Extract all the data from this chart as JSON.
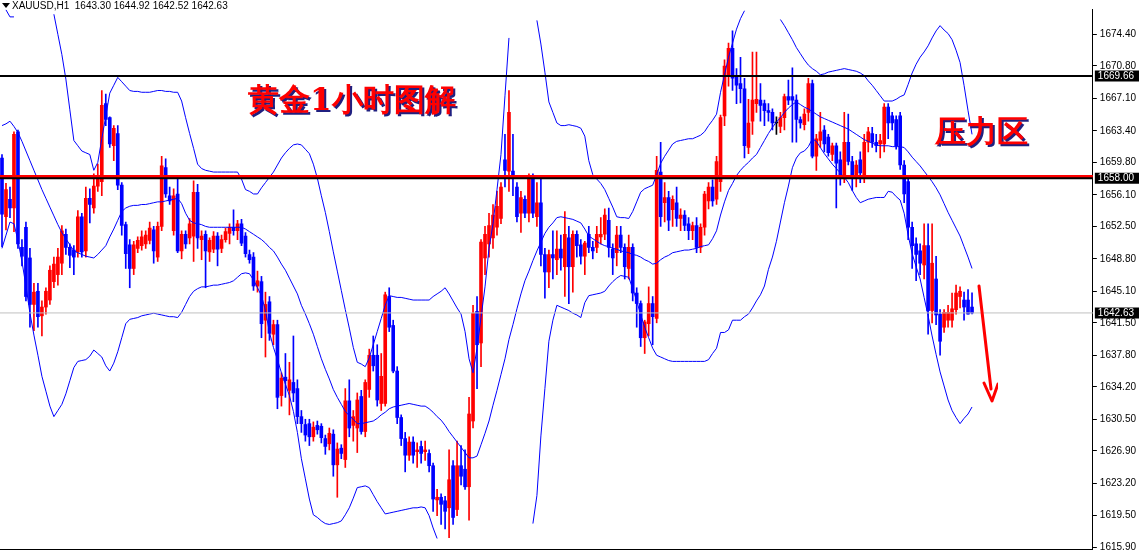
{
  "chart_data": {
    "type": "candlestick",
    "title": "XAUUSD,H1  1643.30 1644.92 1642.52 1642.63",
    "categories": [
      null,
      null,
      null,
      null,
      null,
      null,
      null,
      null,
      null,
      null,
      null,
      null,
      null,
      null,
      null,
      null,
      null,
      null,
      null,
      null,
      null,
      null,
      null,
      null,
      null,
      null,
      null,
      null,
      null,
      null,
      null,
      null,
      null,
      null,
      null,
      null,
      null,
      null,
      null,
      null,
      null,
      null,
      null,
      null,
      null,
      null,
      null,
      null,
      null,
      null,
      null,
      null,
      null,
      null,
      null,
      null,
      null,
      null,
      null,
      null,
      null,
      null,
      null,
      null,
      null,
      null,
      null,
      null,
      null,
      null,
      null,
      null,
      null,
      null,
      null,
      null,
      null,
      null,
      null,
      null,
      null,
      null,
      null,
      null,
      null,
      null,
      null,
      null,
      null,
      null,
      null,
      null,
      null,
      null,
      null,
      null,
      null,
      null,
      null,
      null,
      null,
      null,
      null,
      null,
      null,
      null,
      null,
      null,
      null,
      null,
      null,
      null,
      null,
      null,
      null,
      null,
      null,
      null,
      null,
      null,
      null,
      null,
      null,
      null,
      null,
      null,
      null,
      null,
      null,
      null,
      null,
      null,
      null,
      null,
      null,
      null,
      null,
      null,
      null,
      null,
      null,
      null,
      null,
      null,
      null,
      null,
      null,
      null,
      null,
      null,
      null,
      null,
      null,
      null,
      null,
      null,
      null,
      null,
      null,
      null,
      null,
      null,
      null,
      null,
      null,
      null,
      null,
      null,
      null,
      null,
      null,
      null,
      null,
      null,
      null,
      null,
      null,
      null,
      null,
      null,
      null,
      null,
      null,
      null,
      null,
      null,
      null,
      null,
      null,
      null,
      null,
      null,
      null,
      null,
      null,
      null,
      null,
      null,
      null,
      null,
      null,
      null,
      null,
      null,
      null,
      null,
      null,
      null,
      null,
      null,
      null,
      null,
      null,
      null,
      null,
      null,
      null,
      null,
      null,
      null,
      null,
      null,
      null,
      null,
      null,
      null,
      null,
      null,
      null,
      null,
      null,
      null,
      null,
      null,
      null,
      null,
      null,
      null,
      null,
      null,
      null,
      null,
      null,
      null
    ],
    "ohlc": [
      [
        1660.3,
        1660.7,
        1650.2,
        1653.9
      ],
      [
        1653.6,
        1657.4,
        1652.1,
        1656.7
      ],
      [
        1655.6,
        1657.0,
        1653.5,
        1654.6
      ],
      [
        1654.6,
        1663.3,
        1651.9,
        1663.0
      ],
      [
        1663.3,
        1663.5,
        1650.0,
        1650.5
      ],
      [
        1650.1,
        1651.0,
        1648.0,
        1649.1
      ],
      [
        1652.4,
        1653.0,
        1644.0,
        1644.5
      ],
      [
        1648.9,
        1650.0,
        1641.0,
        1643.6
      ],
      [
        1643.6,
        1646.0,
        1640.6,
        1645.0
      ],
      [
        1645.1,
        1646.0,
        1641.0,
        1642.2
      ],
      [
        1642.3,
        1644.0,
        1640.0,
        1643.3
      ],
      [
        1643.3,
        1645.5,
        1642.5,
        1645.1
      ],
      [
        1644.1,
        1648.0,
        1643.6,
        1647.5
      ],
      [
        1646.2,
        1649.0,
        1645.5,
        1648.2
      ],
      [
        1647.0,
        1650.0,
        1645.8,
        1649.0
      ],
      [
        1648.3,
        1652.6,
        1647.0,
        1652.0
      ],
      [
        1651.6,
        1652.2,
        1649.3,
        1650.1
      ],
      [
        1650.1,
        1650.5,
        1647.8,
        1649.2
      ],
      [
        1649.8,
        1650.3,
        1647.0,
        1649.0
      ],
      [
        1649.6,
        1654.3,
        1649.0,
        1653.6
      ],
      [
        1653.6,
        1654.0,
        1649.0,
        1649.6
      ],
      [
        1649.7,
        1657.0,
        1649.0,
        1655.7
      ],
      [
        1655.7,
        1656.8,
        1652.9,
        1655.0
      ],
      [
        1654.6,
        1658.5,
        1654.0,
        1657.1
      ],
      [
        1657.1,
        1659.6,
        1656.5,
        1658.0
      ],
      [
        1657.6,
        1668.0,
        1656.0,
        1666.3
      ],
      [
        1666.5,
        1667.6,
        1664.0,
        1664.7
      ],
      [
        1664.9,
        1665.0,
        1661.5,
        1661.9
      ],
      [
        1661.7,
        1664.0,
        1660.0,
        1663.7
      ],
      [
        1663.1,
        1664.0,
        1656.7,
        1657.2
      ],
      [
        1657.2,
        1657.5,
        1651.5,
        1652.6
      ],
      [
        1652.7,
        1653.0,
        1647.7,
        1649.4
      ],
      [
        1650.4,
        1651.0,
        1645.5,
        1647.7
      ],
      [
        1647.7,
        1650.8,
        1647.0,
        1650.4
      ],
      [
        1650.0,
        1651.3,
        1649.5,
        1650.9
      ],
      [
        1650.3,
        1652.0,
        1649.8,
        1651.3
      ],
      [
        1650.5,
        1652.0,
        1650.0,
        1651.5
      ],
      [
        1650.9,
        1653.0,
        1650.5,
        1652.3
      ],
      [
        1652.1,
        1652.5,
        1648.3,
        1649.7
      ],
      [
        1649.0,
        1653.0,
        1648.5,
        1652.5
      ],
      [
        1652.5,
        1660.5,
        1652.0,
        1659.4
      ],
      [
        1659.2,
        1660.2,
        1655.8,
        1656.2
      ],
      [
        1656.0,
        1657.0,
        1655.0,
        1655.4
      ],
      [
        1652.0,
        1656.8,
        1651.5,
        1656.0
      ],
      [
        1656.2,
        1658.0,
        1649.5,
        1649.7
      ],
      [
        1649.7,
        1652.0,
        1648.8,
        1651.6
      ],
      [
        1651.6,
        1652.0,
        1650.0,
        1650.5
      ],
      [
        1651.2,
        1653.4,
        1650.5,
        1652.8
      ],
      [
        1651.4,
        1657.7,
        1648.5,
        1656.4
      ],
      [
        1656.4,
        1657.3,
        1650.0,
        1651.2
      ],
      [
        1651.0,
        1652.0,
        1648.7,
        1651.4
      ],
      [
        1651.6,
        1652.0,
        1645.5,
        1649.7
      ],
      [
        1649.6,
        1651.2,
        1648.5,
        1650.9
      ],
      [
        1649.9,
        1651.9,
        1649.5,
        1651.4
      ],
      [
        1651.4,
        1651.8,
        1648.0,
        1649.9
      ],
      [
        1650.0,
        1651.5,
        1649.5,
        1651.0
      ],
      [
        1651.0,
        1652.3,
        1650.7,
        1651.9
      ],
      [
        1651.7,
        1652.8,
        1650.5,
        1652.4
      ],
      [
        1652.4,
        1654.4,
        1651.5,
        1652.0
      ],
      [
        1652.0,
        1653.2,
        1651.0,
        1652.8
      ],
      [
        1652.8,
        1653.3,
        1650.3,
        1650.6
      ],
      [
        1651.4,
        1651.8,
        1649.0,
        1649.4
      ],
      [
        1649.3,
        1649.8,
        1648.3,
        1648.7
      ],
      [
        1649.0,
        1649.5,
        1645.2,
        1645.7
      ],
      [
        1645.7,
        1647.4,
        1645.0,
        1646.3
      ],
      [
        1646.2,
        1646.8,
        1639.8,
        1641.4
      ],
      [
        1641.8,
        1645.0,
        1637.6,
        1643.6
      ],
      [
        1643.9,
        1644.5,
        1639.5,
        1640.3
      ],
      [
        1640.2,
        1641.8,
        1639.0,
        1641.3
      ],
      [
        1641.3,
        1641.8,
        1631.7,
        1633.0
      ],
      [
        1633.2,
        1635.8,
        1632.0,
        1635.2
      ],
      [
        1635.3,
        1638.0,
        1633.0,
        1634.9
      ],
      [
        1633.8,
        1637.0,
        1631.0,
        1635.0
      ],
      [
        1634.7,
        1640.0,
        1632.5,
        1633.5
      ],
      [
        1634.0,
        1635.0,
        1630.0,
        1630.8
      ],
      [
        1630.8,
        1631.5,
        1629.0,
        1630.0
      ],
      [
        1629.9,
        1630.5,
        1628.0,
        1628.7
      ],
      [
        1630.0,
        1630.5,
        1627.5,
        1628.5
      ],
      [
        1628.5,
        1630.2,
        1628.0,
        1629.6
      ],
      [
        1629.8,
        1630.3,
        1628.8,
        1629.3
      ],
      [
        1629.7,
        1630.0,
        1627.8,
        1628.4
      ],
      [
        1628.3,
        1628.7,
        1626.5,
        1627.4
      ],
      [
        1627.7,
        1629.5,
        1627.0,
        1628.9
      ],
      [
        1628.8,
        1629.3,
        1624.0,
        1625.3
      ],
      [
        1625.3,
        1627.8,
        1621.6,
        1627.1
      ],
      [
        1627.2,
        1627.6,
        1626.0,
        1626.6
      ],
      [
        1625.9,
        1634.0,
        1625.0,
        1632.6
      ],
      [
        1632.6,
        1635.0,
        1628.5,
        1629.5
      ],
      [
        1629.8,
        1631.5,
        1628.0,
        1630.8
      ],
      [
        1629.5,
        1633.5,
        1626.7,
        1632.7
      ],
      [
        1633.1,
        1633.8,
        1628.8,
        1629.1
      ],
      [
        1629.1,
        1635.0,
        1628.5,
        1634.7
      ],
      [
        1633.9,
        1638.5,
        1633.0,
        1637.8
      ],
      [
        1637.8,
        1640.0,
        1636.0,
        1636.6
      ],
      [
        1637.8,
        1639.0,
        1632.0,
        1632.7
      ],
      [
        1632.3,
        1638.0,
        1631.5,
        1635.4
      ],
      [
        1632.3,
        1645.0,
        1632.0,
        1644.7
      ],
      [
        1644.5,
        1645.5,
        1640.5,
        1641.0
      ],
      [
        1641.2,
        1641.8,
        1635.8,
        1636.0
      ],
      [
        1636.0,
        1636.5,
        1630.0,
        1630.7
      ],
      [
        1630.7,
        1631.0,
        1627.5,
        1628.3
      ],
      [
        1628.3,
        1629.0,
        1624.5,
        1626.4
      ],
      [
        1626.4,
        1628.5,
        1625.8,
        1627.9
      ],
      [
        1627.9,
        1628.5,
        1625.5,
        1626.4
      ],
      [
        1626.8,
        1627.8,
        1625.0,
        1627.0
      ],
      [
        1627.4,
        1628.0,
        1625.5,
        1626.6
      ],
      [
        1626.8,
        1628.0,
        1625.8,
        1627.0
      ],
      [
        1626.6,
        1627.0,
        1624.5,
        1625.2
      ],
      [
        1625.2,
        1625.5,
        1620.0,
        1621.4
      ],
      [
        1621.3,
        1622.5,
        1619.5,
        1621.6
      ],
      [
        1621.6,
        1622.0,
        1618.5,
        1620.8
      ],
      [
        1621.2,
        1621.7,
        1618.0,
        1620.0
      ],
      [
        1620.4,
        1627.0,
        1617.0,
        1623.6
      ],
      [
        1625.2,
        1625.8,
        1618.5,
        1619.3
      ],
      [
        1620.2,
        1628.0,
        1619.5,
        1625.2
      ],
      [
        1625.2,
        1627.5,
        1623.0,
        1624.0
      ],
      [
        1624.8,
        1627.0,
        1622.5,
        1622.8
      ],
      [
        1622.8,
        1633.0,
        1619.0,
        1631.1
      ],
      [
        1630.3,
        1643.5,
        1629.5,
        1642.6
      ],
      [
        1642.8,
        1644.5,
        1634.0,
        1639.0
      ],
      [
        1639.2,
        1651.0,
        1636.5,
        1650.7
      ],
      [
        1648.9,
        1652.5,
        1647.0,
        1651.6
      ],
      [
        1650.5,
        1654.0,
        1649.0,
        1652.6
      ],
      [
        1651.2,
        1655.0,
        1650.0,
        1653.8
      ],
      [
        1652.4,
        1656.5,
        1651.5,
        1654.8
      ],
      [
        1653.4,
        1657.5,
        1652.8,
        1657.0
      ],
      [
        1660.1,
        1663.0,
        1657.0,
        1658.9
      ],
      [
        1658.8,
        1668.0,
        1656.5,
        1665.5
      ],
      [
        1658.8,
        1663.0,
        1656.0,
        1658.0
      ],
      [
        1657.0,
        1657.5,
        1653.0,
        1653.6
      ],
      [
        1654.0,
        1656.5,
        1651.8,
        1655.8
      ],
      [
        1655.6,
        1656.0,
        1653.5,
        1654.0
      ],
      [
        1654.0,
        1658.5,
        1653.0,
        1658.2
      ],
      [
        1658.2,
        1658.5,
        1653.5,
        1654.0
      ],
      [
        1653.6,
        1657.5,
        1652.5,
        1655.2
      ],
      [
        1655.2,
        1658.0,
        1648.0,
        1649.3
      ],
      [
        1649.3,
        1650.0,
        1644.3,
        1647.3
      ],
      [
        1647.3,
        1649.8,
        1645.5,
        1649.3
      ],
      [
        1649.3,
        1652.0,
        1646.5,
        1648.9
      ],
      [
        1648.7,
        1652.0,
        1647.0,
        1649.9
      ],
      [
        1649.9,
        1651.5,
        1647.5,
        1648.9
      ],
      [
        1647.9,
        1654.2,
        1644.5,
        1651.6
      ],
      [
        1651.2,
        1652.5,
        1643.7,
        1647.9
      ],
      [
        1647.9,
        1652.0,
        1645.0,
        1651.6
      ],
      [
        1651.6,
        1652.0,
        1649.0,
        1650.3
      ],
      [
        1650.4,
        1651.0,
        1648.2,
        1649.1
      ],
      [
        1649.1,
        1650.8,
        1647.0,
        1650.6
      ],
      [
        1651.6,
        1652.5,
        1649.5,
        1650.1
      ],
      [
        1650.1,
        1650.8,
        1648.8,
        1649.7
      ],
      [
        1650.1,
        1652.5,
        1649.5,
        1651.6
      ],
      [
        1651.3,
        1653.5,
        1650.5,
        1651.6
      ],
      [
        1651.6,
        1654.5,
        1651.0,
        1653.8
      ],
      [
        1653.2,
        1654.6,
        1649.0,
        1650.1
      ],
      [
        1649.9,
        1650.5,
        1647.0,
        1648.9
      ],
      [
        1649.5,
        1652.5,
        1648.0,
        1651.5
      ],
      [
        1651.5,
        1652.5,
        1649.5,
        1650.1
      ],
      [
        1650.1,
        1650.5,
        1646.5,
        1647.9
      ],
      [
        1647.7,
        1651.5,
        1646.5,
        1650.1
      ],
      [
        1650.1,
        1650.5,
        1644.0,
        1644.9
      ],
      [
        1644.9,
        1645.5,
        1641.0,
        1643.7
      ],
      [
        1643.7,
        1644.0,
        1638.8,
        1639.8
      ],
      [
        1639.8,
        1641.8,
        1638.0,
        1641.6
      ],
      [
        1641.4,
        1645.6,
        1640.0,
        1643.7
      ],
      [
        1643.7,
        1644.5,
        1639.0,
        1642.2
      ],
      [
        1642.0,
        1660.5,
        1641.5,
        1658.9
      ],
      [
        1658.7,
        1662.1,
        1652.5,
        1653.6
      ],
      [
        1655.2,
        1657.5,
        1653.0,
        1655.8
      ],
      [
        1655.8,
        1656.5,
        1652.0,
        1653.2
      ],
      [
        1654.4,
        1656.0,
        1652.5,
        1655.6
      ],
      [
        1655.2,
        1657.0,
        1652.5,
        1653.4
      ],
      [
        1653.4,
        1654.5,
        1652.0,
        1653.8
      ],
      [
        1653.8,
        1654.3,
        1652.0,
        1652.6
      ],
      [
        1652.8,
        1653.5,
        1651.0,
        1652.0
      ],
      [
        1652.0,
        1653.0,
        1651.0,
        1652.6
      ],
      [
        1652.6,
        1653.5,
        1649.5,
        1650.1
      ],
      [
        1650.1,
        1652.8,
        1649.5,
        1652.4
      ],
      [
        1652.4,
        1656.5,
        1651.5,
        1656.2
      ],
      [
        1655.4,
        1657.5,
        1654.5,
        1657.0
      ],
      [
        1657.0,
        1657.8,
        1654.8,
        1655.4
      ],
      [
        1655.6,
        1660.5,
        1655.0,
        1659.9
      ],
      [
        1657.6,
        1665.2,
        1656.5,
        1664.9
      ],
      [
        1665.1,
        1671.5,
        1664.0,
        1670.8
      ],
      [
        1669.8,
        1673.4,
        1668.5,
        1672.8
      ],
      [
        1672.8,
        1674.8,
        1668.0,
        1669.4
      ],
      [
        1669.6,
        1670.5,
        1666.5,
        1668.6
      ],
      [
        1668.8,
        1671.8,
        1666.6,
        1668.2
      ],
      [
        1668.2,
        1669.4,
        1660.3,
        1661.7
      ],
      [
        1661.5,
        1667.0,
        1660.8,
        1664.3
      ],
      [
        1664.5,
        1672.4,
        1663.0,
        1666.9
      ],
      [
        1666.5,
        1672.4,
        1665.5,
        1667.0
      ],
      [
        1666.9,
        1668.8,
        1664.5,
        1666.3
      ],
      [
        1666.5,
        1666.9,
        1664.0,
        1665.7
      ],
      [
        1665.7,
        1666.5,
        1664.5,
        1665.5
      ],
      [
        1665.5,
        1665.9,
        1663.5,
        1664.3
      ],
      [
        1664.3,
        1665.0,
        1663.0,
        1664.3
      ],
      [
        1663.9,
        1665.5,
        1663.2,
        1664.9
      ],
      [
        1664.9,
        1667.6,
        1663.5,
        1667.3
      ],
      [
        1667.3,
        1669.2,
        1666.4,
        1666.9
      ],
      [
        1667.3,
        1670.6,
        1662.1,
        1666.9
      ],
      [
        1666.9,
        1667.5,
        1662.1,
        1664.7
      ],
      [
        1664.7,
        1665.0,
        1663.7,
        1664.3
      ],
      [
        1664.1,
        1665.9,
        1663.5,
        1665.3
      ],
      [
        1665.5,
        1669.4,
        1664.5,
        1668.8
      ],
      [
        1668.8,
        1669.2,
        1660.3,
        1660.5
      ],
      [
        1660.5,
        1663.0,
        1658.9,
        1662.5
      ],
      [
        1662.3,
        1665.5,
        1661.5,
        1663.3
      ],
      [
        1663.5,
        1664.0,
        1661.0,
        1661.9
      ],
      [
        1662.7,
        1663.0,
        1660.5,
        1660.9
      ],
      [
        1660.7,
        1662.0,
        1660.0,
        1661.7
      ],
      [
        1661.7,
        1662.0,
        1654.6,
        1659.7
      ],
      [
        1660.1,
        1661.0,
        1657.2,
        1658.4
      ],
      [
        1658.2,
        1665.5,
        1657.5,
        1662.1
      ],
      [
        1662.1,
        1665.3,
        1659.5,
        1659.9
      ],
      [
        1659.9,
        1660.5,
        1656.6,
        1658.4
      ],
      [
        1658.0,
        1660.0,
        1657.0,
        1659.5
      ],
      [
        1660.1,
        1661.0,
        1657.5,
        1658.6
      ],
      [
        1658.2,
        1663.0,
        1657.5,
        1662.1
      ],
      [
        1662.1,
        1663.8,
        1661.0,
        1663.3
      ],
      [
        1663.1,
        1663.8,
        1661.5,
        1662.1
      ],
      [
        1662.1,
        1663.0,
        1661.0,
        1661.7
      ],
      [
        1661.9,
        1663.0,
        1660.3,
        1662.3
      ],
      [
        1661.9,
        1666.5,
        1661.0,
        1666.1
      ],
      [
        1666.1,
        1666.5,
        1662.5,
        1664.3
      ],
      [
        1665.1,
        1665.5,
        1663.5,
        1664.3
      ],
      [
        1664.7,
        1665.1,
        1661.3,
        1661.7
      ],
      [
        1665.1,
        1665.5,
        1659.0,
        1659.5
      ],
      [
        1659.5,
        1660.0,
        1655.2,
        1656.2
      ],
      [
        1657.6,
        1658.0,
        1651.0,
        1652.4
      ],
      [
        1652.4,
        1653.0,
        1647.7,
        1650.3
      ],
      [
        1650.5,
        1651.2,
        1646.3,
        1649.3
      ],
      [
        1649.7,
        1650.5,
        1647.0,
        1648.3
      ],
      [
        1648.1,
        1652.8,
        1646.5,
        1650.3
      ],
      [
        1650.3,
        1652.8,
        1640.2,
        1642.9
      ],
      [
        1642.9,
        1652.8,
        1641.5,
        1648.3
      ],
      [
        1646.5,
        1649.1,
        1641.3,
        1642.4
      ],
      [
        1642.5,
        1643.0,
        1637.8,
        1639.4
      ],
      [
        1641.0,
        1643.0,
        1640.4,
        1642.7
      ],
      [
        1641.8,
        1643.5,
        1641.0,
        1642.7
      ],
      [
        1641.8,
        1644.9,
        1641.0,
        1643.1
      ],
      [
        1643.0,
        1645.8,
        1642.5,
        1644.9
      ],
      [
        1644.5,
        1645.6,
        1643.2,
        1645.1
      ],
      [
        1644.1,
        1645.0,
        1641.8,
        1643.3
      ],
      [
        1644.1,
        1645.3,
        1642.5,
        1642.5
      ],
      [
        1643.3,
        1644.92,
        1642.52,
        1642.63
      ]
    ],
    "series": [
      {
        "type": "line",
        "color": "#0000ff",
        "values": [
          null,
          1677.2,
          1676.4,
          1676.4,
          null,
          null,
          null,
          null,
          null,
          null,
          null,
          null,
          null,
          1676.7,
          1674.4,
          1672.1,
          1669.3,
          1665.8,
          1662.3,
          1661.7,
          1661.1,
          1660.9,
          1660.7,
          1658.9,
          1659.8,
          1662.5,
          1665.1,
          1667.7,
          1668.6,
          1669.5,
          1669.0,
          1668.5,
          1668.0,
          1667.9,
          1667.9,
          1667.8,
          1667.8,
          1667.8,
          1667.9,
          1668.0,
          1668.0,
          1667.9,
          1667.9,
          1667.8,
          1667.8,
          1666.8,
          1664.9,
          1663.1,
          1661.4,
          1659.6,
          1659.1,
          1658.9,
          1658.8,
          1658.7,
          1658.7,
          1658.7,
          1658.7,
          1658.7,
          1658.7,
          1658.7,
          1657.9,
          1656.7,
          1656.5,
          1656.2,
          1656.2,
          1656.9,
          1657.5,
          1658.1,
          1658.7,
          1659.5,
          1660.3,
          1660.9,
          1661.4,
          1661.8,
          1661.9,
          1661.8,
          1661.3,
          1660.8,
          1659.6,
          1658.0,
          1656.0,
          1654.1,
          1651.9,
          1649.6,
          1647.4,
          1645.2,
          1643.0,
          1640.9,
          1638.7,
          1637.0,
          1636.8,
          1636.5,
          1637.5,
          1639.0,
          1640.5,
          1642.0,
          1643.5,
          1644.6,
          1644.5,
          1644.4,
          1644.4,
          1644.3,
          1644.2,
          1644.1,
          1644.1,
          1644.1,
          1644.1,
          1644.1,
          1644.5,
          1644.8,
          1645.1,
          1645.5,
          1644.8,
          1644.0,
          1643.2,
          1642.5,
          1640.5,
          1637.4,
          1635.8,
          1638.6,
          1642.1,
          1645.6,
          1650.0,
          1652.8,
          1656.7,
          1660.7,
          1667.4,
          1674.0,
          null,
          null,
          null,
          null,
          null,
          null,
          1676.0,
          1673.3,
          1670.1,
          1666.7,
          1665.5,
          1664.3,
          1664.0,
          1664.0,
          1664.1,
          1664.0,
          1663.9,
          1663.7,
          1662.8,
          1660.0,
          1658.4,
          1657.9,
          1657.4,
          1656.7,
          1655.7,
          1654.7,
          1653.6,
          1653.5,
          1653.5,
          1653.4,
          1654.2,
          1655.3,
          1656.4,
          1656.8,
          1657.0,
          1657.2,
          1658.4,
          1659.7,
          1660.5,
          1661.2,
          1661.9,
          1662.2,
          1662.3,
          1662.4,
          1662.5,
          1662.5,
          1662.7,
          1662.9,
          1663.3,
          1664.0,
          1664.6,
          1665.3,
          1667.8,
          1669.8,
          1671.8,
          1673.4,
          1675.0,
          1676.2,
          1677.1,
          null,
          null,
          null,
          null,
          null,
          null,
          null,
          null,
          1676.1,
          1675.4,
          1674.6,
          1673.8,
          1672.9,
          1672.2,
          1671.5,
          1670.9,
          1670.5,
          1670.2,
          1669.8,
          1669.9,
          1670.1,
          1670.2,
          1670.3,
          1670.4,
          1670.5,
          1670.4,
          1670.3,
          1670.2,
          1670.0,
          1669.7,
          1669.1,
          1668.6,
          1668.0,
          1667.4,
          1666.8,
          1666.8,
          1666.8,
          1667.0,
          1667.3,
          1667.5,
          1668.7,
          1670.0,
          1671.0,
          1671.8,
          1672.4,
          1673.1,
          1674.0,
          1674.8,
          1675.4,
          1674.9,
          1674.5,
          1673.8,
          1672.6,
          1671.2,
          1668.6,
          1665.7,
          1663.0
        ]
      },
      {
        "type": "line",
        "color": "#0000ff",
        "values": [
          1664.0,
          1664.2,
          1664.5,
          1663.9,
          1663.2,
          1662.2,
          1661.1,
          1660.0,
          1658.9,
          1657.8,
          1656.7,
          1655.7,
          1654.7,
          1653.7,
          1652.7,
          1651.8,
          1651.1,
          1650.4,
          1649.7,
          1649.5,
          1649.3,
          1649.1,
          1649.0,
          1648.9,
          1649.3,
          1649.8,
          1650.3,
          1651.3,
          1652.2,
          1653.2,
          1654.2,
          1654.6,
          1654.8,
          1654.9,
          1654.9,
          1655.0,
          1655.0,
          1655.1,
          1655.2,
          1655.3,
          1655.3,
          1655.4,
          1655.5,
          1655.6,
          1655.7,
          1655.1,
          1654.0,
          1653.2,
          1652.9,
          1652.8,
          1652.7,
          1652.5,
          1652.4,
          1652.4,
          1652.4,
          1652.4,
          1652.4,
          1652.4,
          1652.4,
          1652.4,
          1652.4,
          1652.2,
          1651.9,
          1651.6,
          1651.3,
          1651.0,
          1650.6,
          1650.1,
          1649.7,
          1649.0,
          1648.2,
          1647.5,
          1646.6,
          1645.7,
          1644.8,
          1643.5,
          1642.5,
          1641.4,
          1640.2,
          1638.8,
          1637.4,
          1636.2,
          1635.1,
          1633.9,
          1633.0,
          1632.2,
          1631.4,
          1630.9,
          1630.5,
          1630.0,
          1630.0,
          1630.1,
          1630.2,
          1630.3,
          1630.6,
          1631.0,
          1631.3,
          1631.7,
          1631.9,
          1632.0,
          1632.1,
          1632.2,
          1632.3,
          1632.2,
          1632.1,
          1632.0,
          1632.0,
          1631.7,
          1631.3,
          1630.8,
          1630.4,
          1629.8,
          1629.1,
          1628.5,
          1627.9,
          1627.3,
          1626.7,
          1626.1,
          1626.1,
          1626.3,
          1627.6,
          1628.9,
          1630.3,
          1632.1,
          1633.8,
          1635.6,
          1637.4,
          1639.6,
          1641.3,
          1643.1,
          1644.8,
          1646.3,
          1647.4,
          1648.6,
          1649.7,
          1650.7,
          1651.7,
          1652.4,
          1652.9,
          1653.5,
          1653.6,
          1653.5,
          1653.4,
          1653.3,
          1653.1,
          1652.9,
          1652.2,
          1651.4,
          1651.1,
          1650.8,
          1650.5,
          1650.3,
          1650.2,
          1650.0,
          1649.9,
          1649.7,
          1649.6,
          1649.5,
          1649.3,
          1649.2,
          1649.0,
          1648.7,
          1648.5,
          1648.2,
          1648.3,
          1648.7,
          1649.0,
          1649.2,
          1649.5,
          1649.6,
          1649.7,
          1649.8,
          1649.8,
          1649.9,
          1650.0,
          1650.2,
          1650.3,
          1650.4,
          1651.1,
          1652.0,
          1653.8,
          1655.3,
          1656.6,
          1657.4,
          1658.3,
          1658.9,
          1659.4,
          1659.8,
          1660.3,
          1660.7,
          1661.5,
          1662.3,
          1663.1,
          1663.8,
          1664.4,
          1664.9,
          1665.5,
          1666.0,
          1666.4,
          1666.7,
          1666.4,
          1666.1,
          1665.9,
          1665.6,
          1665.3,
          1665.0,
          1664.8,
          1664.6,
          1664.4,
          1664.2,
          1664.0,
          1663.8,
          1663.6,
          1663.3,
          1663.0,
          1662.7,
          1662.4,
          1662.2,
          1662.0,
          1661.8,
          1661.7,
          1661.7,
          1661.7,
          1661.6,
          1661.6,
          1661.6,
          1661.5,
          1661.0,
          1660.4,
          1659.9,
          1659.4,
          1658.8,
          1658.2,
          1657.6,
          1656.9,
          1656.1,
          1655.1,
          1654.1,
          1653.2,
          1652.3,
          1651.4,
          1650.2,
          1649.0,
          1647.7
        ]
      },
      {
        "type": "line",
        "color": "#0000ff",
        "values": [
          1650.0,
          1651.5,
          1653.0,
          1652.8,
          1650.9,
          1648.5,
          1645.7,
          1642.6,
          1640.1,
          1637.8,
          1635.4,
          1633.7,
          1632.0,
          1630.8,
          1631.5,
          1632.2,
          1633.4,
          1634.9,
          1636.4,
          1637.1,
          1637.2,
          1637.3,
          1637.7,
          1638.4,
          1638.0,
          1637.6,
          1636.6,
          1636.0,
          1636.9,
          1638.2,
          1639.8,
          1641.4,
          1641.9,
          1642.0,
          1642.1,
          1642.3,
          1642.4,
          1642.5,
          1642.6,
          1642.5,
          1642.4,
          1642.3,
          1642.2,
          1642.2,
          1642.1,
          1642.7,
          1643.6,
          1644.5,
          1645.1,
          1645.4,
          1645.6,
          1645.6,
          1645.7,
          1645.8,
          1645.8,
          1645.9,
          1646.0,
          1646.1,
          1646.3,
          1646.7,
          1647.1,
          1647.2,
          1647.1,
          1646.4,
          1645.5,
          1644.6,
          1642.9,
          1640.4,
          1638.7,
          1637.3,
          1635.8,
          1634.5,
          1633.2,
          1631.4,
          1629.0,
          1626.0,
          1623.7,
          1621.4,
          1619.6,
          1619.3,
          1618.9,
          1618.6,
          1618.5,
          1618.6,
          1618.7,
          1618.9,
          1619.6,
          1620.4,
          1621.5,
          1622.7,
          1622.8,
          1622.9,
          1622.7,
          1621.9,
          1621.1,
          1620.4,
          1619.7,
          1619.8,
          1619.9,
          1620.0,
          1620.1,
          1620.2,
          1620.3,
          1620.4,
          1620.4,
          1620.5,
          1620.4,
          1619.5,
          1618.1,
          1616.9,
          null,
          null,
          null,
          null,
          null,
          null,
          null,
          null,
          null,
          null,
          null,
          null,
          null,
          null,
          null,
          null,
          null,
          null,
          null,
          null,
          null,
          null,
          null,
          1618.6,
          1621.8,
          1628.6,
          1634.0,
          1639.4,
          1641.8,
          1643.5,
          1643.3,
          1643.1,
          1642.9,
          1642.6,
          1642.4,
          1642.1,
          1643.8,
          1644.6,
          1644.7,
          1644.8,
          1644.9,
          1645.1,
          1645.7,
          1646.2,
          1646.6,
          1646.9,
          1646.8,
          1646.7,
          1645.4,
          1644.0,
          1642.4,
          1641.0,
          1639.8,
          1638.6,
          1637.8,
          1637.6,
          1637.4,
          1637.2,
          1637.1,
          1637.1,
          1637.1,
          1637.1,
          1637.1,
          1637.1,
          1637.1,
          1637.1,
          1637.1,
          1637.3,
          1638.0,
          1638.6,
          1640.4,
          1640.4,
          1640.7,
          1641.8,
          1641.8,
          1641.8,
          1642.2,
          1642.5,
          1643.2,
          1644.0,
          1644.7,
          1645.7,
          1647.6,
          1649.0,
          1650.8,
          1653.0,
          1655.2,
          1657.1,
          1659.2,
          1660.3,
          1660.9,
          1661.1,
          1661.6,
          1662.5,
          1662.2,
          1661.5,
          1660.8,
          1660.2,
          1659.6,
          1659.1,
          1658.6,
          1658.1,
          1657.5,
          1656.6,
          1655.8,
          1655.2,
          1655.4,
          1655.6,
          1655.7,
          1655.8,
          1655.8,
          1655.8,
          1656.5,
          1656.4,
          1655.9,
          1655.5,
          1654.0,
          1651.5,
          1649.4,
          1647.9,
          1646.5,
          1644.4,
          1642.3,
          1640.0,
          1637.9,
          1635.9,
          1634.3,
          1632.7,
          1631.5,
          1630.7,
          1630.0,
          1630.6,
          1631.1,
          1631.9
        ]
      }
    ],
    "ylim": [
      1615.7,
      1677.3
    ],
    "yticks": [
      {
        "value": 1674.4,
        "label": "1674.40"
      },
      {
        "value": 1670.8,
        "label": "1670.80"
      },
      {
        "value": 1667.1,
        "label": "1667.10"
      },
      {
        "value": 1663.4,
        "label": "1663.40"
      },
      {
        "value": 1659.8,
        "label": "1659.80"
      },
      {
        "value": 1656.1,
        "label": "1656.10"
      },
      {
        "value": 1652.5,
        "label": "1652.50"
      },
      {
        "value": 1648.8,
        "label": "1648.80"
      },
      {
        "value": 1645.1,
        "label": "1645.10"
      },
      {
        "value": 1641.5,
        "label": "1641.50"
      },
      {
        "value": 1637.8,
        "label": "1637.80"
      },
      {
        "value": 1634.2,
        "label": "1634.20"
      },
      {
        "value": 1630.5,
        "label": "1630.50"
      },
      {
        "value": 1626.9,
        "label": "1626.90"
      },
      {
        "value": 1623.2,
        "label": "1623.20"
      },
      {
        "value": 1619.5,
        "label": "1619.50"
      },
      {
        "value": 1615.9,
        "label": "1615.90"
      }
    ],
    "ref_lines": [
      {
        "axis": "y",
        "value": 1658.2,
        "color": "#ff0000"
      },
      {
        "axis": "y",
        "value": 1669.66,
        "label": "1669.66",
        "color": "#000000"
      },
      {
        "axis": "y",
        "value": 1658.0,
        "label": "1658.00",
        "color": "#000000"
      },
      {
        "axis": "y",
        "value": 1642.63,
        "label": "1642.63",
        "color": "#c0c0c0"
      }
    ],
    "annotations": [
      "黄金1小时图解",
      "压力区"
    ],
    "grid": false,
    "legend": false,
    "marker": "none",
    "tick_labels": "y"
  }
}
